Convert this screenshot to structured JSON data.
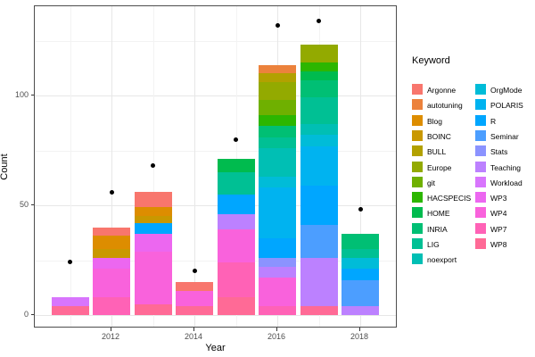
{
  "chart_data": {
    "type": "bar",
    "title": "",
    "xlabel": "Year",
    "ylabel": "Count",
    "legend_title": "Keyword",
    "x_ticks": [
      2012,
      2014,
      2016,
      2018
    ],
    "y_ticks": [
      0,
      50,
      100
    ],
    "y_minor": [
      25,
      75,
      125
    ],
    "x_minor": [
      2011,
      2013,
      2015,
      2017
    ],
    "ylim": [
      -6,
      140.6
    ],
    "grid": true,
    "legend_position": "right",
    "keywords": [
      {
        "name": "Argonne",
        "color": "#F8766D"
      },
      {
        "name": "autotuning",
        "color": "#EC823C"
      },
      {
        "name": "Blog",
        "color": "#DD8D00"
      },
      {
        "name": "BOINC",
        "color": "#C99800"
      },
      {
        "name": "BULL",
        "color": "#B2A100"
      },
      {
        "name": "Europe",
        "color": "#93AA00"
      },
      {
        "name": "git",
        "color": "#6FB000"
      },
      {
        "name": "HACSPECIS",
        "color": "#2CB600"
      },
      {
        "name": "HOME",
        "color": "#00BB4E"
      },
      {
        "name": "INRIA",
        "color": "#00BF74"
      },
      {
        "name": "LIG",
        "color": "#00C094"
      },
      {
        "name": "noexport",
        "color": "#00BFB4"
      },
      {
        "name": "OrgMode",
        "color": "#00BCD8"
      },
      {
        "name": "POLARIS",
        "color": "#00B3F0"
      },
      {
        "name": "R",
        "color": "#00A6FF"
      },
      {
        "name": "Seminar",
        "color": "#4C9EFF"
      },
      {
        "name": "Stats",
        "color": "#8B93FF"
      },
      {
        "name": "Teaching",
        "color": "#BC81FF"
      },
      {
        "name": "Workload",
        "color": "#D875FD"
      },
      {
        "name": "WP3",
        "color": "#EC67F0"
      },
      {
        "name": "WP4",
        "color": "#F962DC"
      },
      {
        "name": "WP7",
        "color": "#FF62B6"
      },
      {
        "name": "WP8",
        "color": "#FF6A96"
      }
    ],
    "bars": [
      {
        "year": 2011,
        "total": 8,
        "segments": [
          {
            "keyword": "WP8",
            "value": 4
          },
          {
            "keyword": "Workload",
            "value": 4
          }
        ]
      },
      {
        "year": 2012,
        "total": 40,
        "segments": [
          {
            "keyword": "WP7",
            "value": 8
          },
          {
            "keyword": "WP4",
            "value": 13
          },
          {
            "keyword": "WP3",
            "value": 5
          },
          {
            "keyword": "BOINC",
            "value": 4
          },
          {
            "keyword": "Blog",
            "value": 6
          },
          {
            "keyword": "Argonne",
            "value": 4
          }
        ]
      },
      {
        "year": 2013,
        "total": 56,
        "segments": [
          {
            "keyword": "WP8",
            "value": 5
          },
          {
            "keyword": "WP4",
            "value": 24
          },
          {
            "keyword": "WP3",
            "value": 8
          },
          {
            "keyword": "R",
            "value": 5
          },
          {
            "keyword": "BOINC",
            "value": 3
          },
          {
            "keyword": "Blog",
            "value": 4
          },
          {
            "keyword": "Argonne",
            "value": 7
          }
        ]
      },
      {
        "year": 2014,
        "total": 15,
        "segments": [
          {
            "keyword": "WP8",
            "value": 4
          },
          {
            "keyword": "WP4",
            "value": 7
          },
          {
            "keyword": "Argonne",
            "value": 4
          }
        ]
      },
      {
        "year": 2015,
        "total": 71,
        "segments": [
          {
            "keyword": "WP8",
            "value": 8
          },
          {
            "keyword": "WP7",
            "value": 16
          },
          {
            "keyword": "WP4",
            "value": 15
          },
          {
            "keyword": "Teaching",
            "value": 7
          },
          {
            "keyword": "R",
            "value": 9
          },
          {
            "keyword": "LIG",
            "value": 10
          },
          {
            "keyword": "HOME",
            "value": 6
          }
        ]
      },
      {
        "year": 2016,
        "total": 114,
        "segments": [
          {
            "keyword": "WP7",
            "value": 4
          },
          {
            "keyword": "WP4",
            "value": 13
          },
          {
            "keyword": "Teaching",
            "value": 5
          },
          {
            "keyword": "Stats",
            "value": 4
          },
          {
            "keyword": "R",
            "value": 9
          },
          {
            "keyword": "POLARIS",
            "value": 23
          },
          {
            "keyword": "OrgMode",
            "value": 5
          },
          {
            "keyword": "noexport",
            "value": 13
          },
          {
            "keyword": "LIG",
            "value": 5
          },
          {
            "keyword": "INRIA",
            "value": 5
          },
          {
            "keyword": "HACSPECIS",
            "value": 5
          },
          {
            "keyword": "git",
            "value": 7
          },
          {
            "keyword": "Europe",
            "value": 8
          },
          {
            "keyword": "BULL",
            "value": 4
          },
          {
            "keyword": "autotuning",
            "value": 4
          }
        ]
      },
      {
        "year": 2017,
        "total": 123,
        "segments": [
          {
            "keyword": "WP8",
            "value": 4
          },
          {
            "keyword": "Teaching",
            "value": 22
          },
          {
            "keyword": "Seminar",
            "value": 15
          },
          {
            "keyword": "R",
            "value": 18
          },
          {
            "keyword": "POLARIS",
            "value": 18
          },
          {
            "keyword": "OrgMode",
            "value": 5
          },
          {
            "keyword": "noexport",
            "value": 5
          },
          {
            "keyword": "LIG",
            "value": 12
          },
          {
            "keyword": "INRIA",
            "value": 8
          },
          {
            "keyword": "HOME",
            "value": 4
          },
          {
            "keyword": "HACSPECIS",
            "value": 4
          },
          {
            "keyword": "Europe",
            "value": 8
          }
        ]
      },
      {
        "year": 2018,
        "total": 37,
        "segments": [
          {
            "keyword": "Teaching",
            "value": 4
          },
          {
            "keyword": "Seminar",
            "value": 12
          },
          {
            "keyword": "R",
            "value": 5
          },
          {
            "keyword": "OrgMode",
            "value": 5
          },
          {
            "keyword": "LIG",
            "value": 4
          },
          {
            "keyword": "INRIA",
            "value": 7
          }
        ]
      }
    ],
    "points": [
      {
        "year": 2011,
        "value": 24
      },
      {
        "year": 2012,
        "value": 56
      },
      {
        "year": 2013,
        "value": 68
      },
      {
        "year": 2014,
        "value": 20
      },
      {
        "year": 2015,
        "value": 80
      },
      {
        "year": 2016,
        "value": 132
      },
      {
        "year": 2017,
        "value": 134
      },
      {
        "year": 2018,
        "value": 48
      }
    ]
  }
}
